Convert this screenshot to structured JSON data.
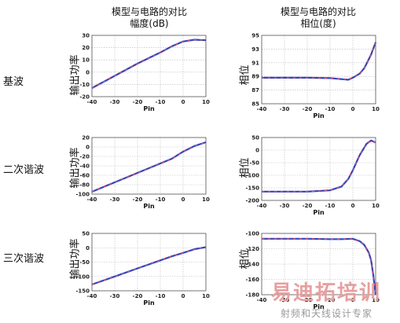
{
  "headers": {
    "left": {
      "line1": "模型与电路的对比",
      "line2": "幅度(dB)"
    },
    "right": {
      "line1": "模型与电路的对比",
      "line2": "相位(度)"
    }
  },
  "rows": [
    {
      "label": "基波",
      "left_ylabel": "输出功率",
      "right_ylabel": "相位"
    },
    {
      "label": "二次谐波",
      "left_ylabel": "输出功率",
      "right_ylabel": "相位"
    },
    {
      "label": "三次谐波",
      "left_ylabel": "输出功率",
      "right_ylabel": "相位"
    }
  ],
  "watermark": {
    "big": "易迪拓培训",
    "small": "射频和天线设计专家"
  },
  "colors": {
    "model": "#ee5566",
    "circuit": "#3344bb",
    "grid": "#b8b8b8"
  },
  "chart_data": [
    {
      "type": "line",
      "xlabel": "Pin",
      "ylabel": "输出功率",
      "xlim": [
        -40,
        10
      ],
      "ylim": [
        -20,
        30
      ],
      "xticks": [
        -40,
        -30,
        -20,
        -10,
        0,
        10
      ],
      "yticks": [
        -20,
        -10,
        0,
        10,
        20,
        30
      ],
      "x": [
        -40,
        -30,
        -20,
        -10,
        -5,
        0,
        5,
        10
      ],
      "y": [
        -13,
        -3,
        7,
        16,
        21,
        25,
        26.5,
        26
      ],
      "grid": true
    },
    {
      "type": "line",
      "xlabel": "Pin",
      "ylabel": "相位",
      "xlim": [
        -40,
        10
      ],
      "ylim": [
        85,
        95
      ],
      "xticks": [
        -40,
        -30,
        -20,
        -10,
        0,
        10
      ],
      "yticks": [
        85,
        87,
        89,
        91,
        93,
        95
      ],
      "x": [
        -40,
        -20,
        -10,
        -5,
        -2,
        0,
        3,
        5,
        7,
        8,
        10
      ],
      "y": [
        88.8,
        88.8,
        88.75,
        88.6,
        88.5,
        88.8,
        89.4,
        90.2,
        91.5,
        92.2,
        94
      ],
      "grid": true
    },
    {
      "type": "line",
      "xlabel": "Pin",
      "ylabel": "输出功率",
      "xlim": [
        -40,
        10
      ],
      "ylim": [
        -100,
        20
      ],
      "xticks": [
        -40,
        -30,
        -20,
        -10,
        0,
        10
      ],
      "yticks": [
        -100,
        -80,
        -60,
        -40,
        -20,
        0,
        20
      ],
      "x": [
        -40,
        -30,
        -20,
        -10,
        -5,
        0,
        5,
        10
      ],
      "y": [
        -95,
        -75,
        -55,
        -35,
        -25,
        -10,
        2,
        10
      ],
      "grid": true
    },
    {
      "type": "line",
      "xlabel": "Pin",
      "ylabel": "相位",
      "xlim": [
        -40,
        10
      ],
      "ylim": [
        -200,
        50
      ],
      "xticks": [
        -40,
        -30,
        -20,
        -10,
        0,
        10
      ],
      "yticks": [
        -200,
        -150,
        -100,
        -50,
        0,
        50
      ],
      "x": [
        -40,
        -20,
        -10,
        -5,
        -2,
        0,
        3,
        6,
        8,
        10
      ],
      "y": [
        -165,
        -165,
        -160,
        -145,
        -115,
        -80,
        -20,
        25,
        38,
        30
      ],
      "grid": true
    },
    {
      "type": "line",
      "xlabel": "Pin",
      "ylabel": "输出功率",
      "xlim": [
        -40,
        10
      ],
      "ylim": [
        -150,
        50
      ],
      "xticks": [
        -40,
        -30,
        -20,
        -10,
        0,
        10
      ],
      "yticks": [
        -150,
        -100,
        -50,
        0,
        50
      ],
      "x": [
        -40,
        -30,
        -20,
        -10,
        -5,
        0,
        5,
        10
      ],
      "y": [
        -128,
        -100,
        -72,
        -44,
        -30,
        -18,
        -5,
        2
      ],
      "grid": true
    },
    {
      "type": "line",
      "xlabel": "Pin",
      "ylabel": "相位",
      "xlim": [
        -40,
        10
      ],
      "ylim": [
        -180,
        -100
      ],
      "xticks": [
        -40,
        -30,
        -20,
        -10,
        0,
        10
      ],
      "yticks": [
        -180,
        -160,
        -140,
        -120,
        -100
      ],
      "x": [
        -40,
        -20,
        -10,
        -5,
        0,
        3,
        5,
        7,
        8,
        9,
        10
      ],
      "y": [
        -107,
        -107,
        -107.5,
        -107.5,
        -107,
        -110,
        -115,
        -125,
        -135,
        -155,
        -180
      ],
      "grid": true
    }
  ]
}
